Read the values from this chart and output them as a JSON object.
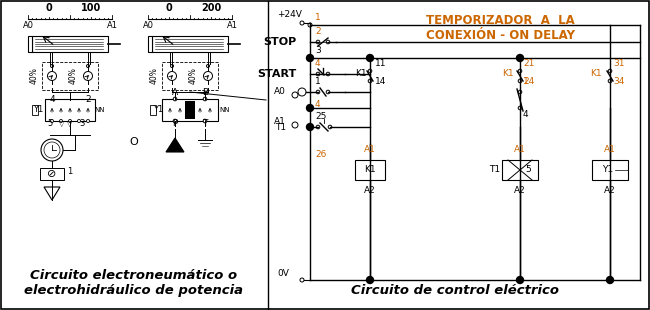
{
  "figsize": [
    6.5,
    3.1
  ],
  "dpi": 100,
  "bg_color": "#ffffff",
  "header_text": "TEMPORIZADOR  A  LA\nCONEXIÓN - ON DELAY",
  "header_color": "#cc6600",
  "orange": "#cc6600",
  "black": "#000000",
  "left_caption": "Circuito electroneumático o\nelectrohidráulico de potencia",
  "right_caption": "Circuito de control eléctrico"
}
